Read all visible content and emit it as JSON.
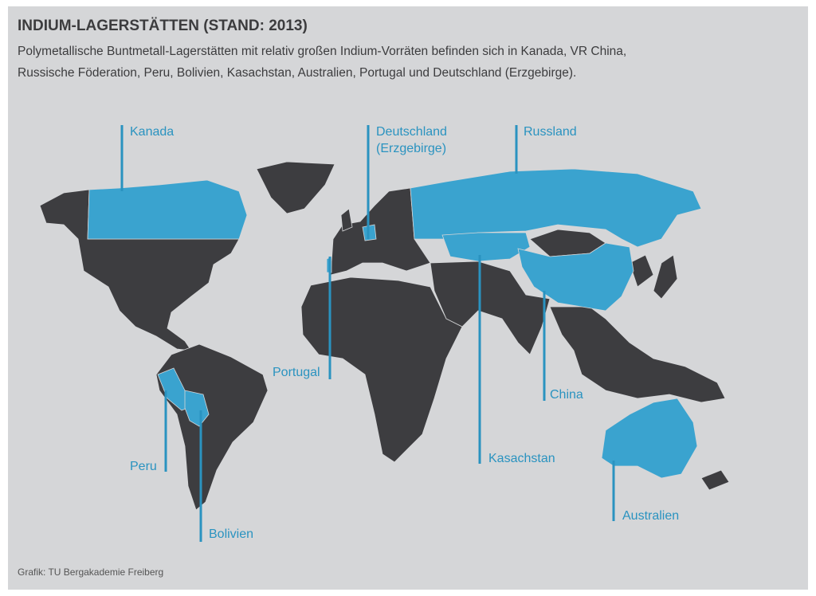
{
  "header": {
    "title": "INDIUM-LAGERSTÄTTEN (STAND: 2013)",
    "subtitle_lines": [
      "Polymetallische Buntmetall-Lagerstätten mit relativ großen Indium-Vorräten befinden sich in Kanada, VR China,",
      "Russische Föderation, Peru, Bolivien, Kasachstan, Australien, Portugal und Deutschland (Erzgebirge)."
    ]
  },
  "map": {
    "labels": [
      {
        "label": "Kanada"
      },
      {
        "label": "Deutschland (Erzgebirge)"
      },
      {
        "label": "Russland"
      },
      {
        "label": "Portugal"
      },
      {
        "label": "Peru"
      },
      {
        "label": "Bolivien"
      },
      {
        "label": "China"
      },
      {
        "label": "Kasachstan"
      },
      {
        "label": "Australien"
      }
    ]
  },
  "footer": {
    "source": "Grafik: TU Bergakademie Freiberg"
  }
}
